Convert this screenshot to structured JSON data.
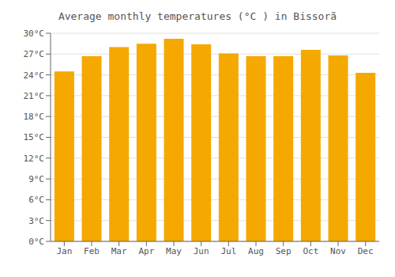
{
  "chart_data": {
    "type": "bar",
    "title": "Average monthly temperatures (°C ) in Bissorã",
    "categories": [
      "Jan",
      "Feb",
      "Mar",
      "Apr",
      "May",
      "Jun",
      "Jul",
      "Aug",
      "Sep",
      "Oct",
      "Nov",
      "Dec"
    ],
    "values": [
      24.5,
      26.7,
      28.0,
      28.5,
      29.2,
      28.4,
      27.1,
      26.7,
      26.7,
      27.6,
      26.8,
      24.3
    ],
    "color": "#F5A800",
    "ylim": [
      0,
      30
    ],
    "yticks": [
      {
        "value": 0,
        "label": "0°C"
      },
      {
        "value": 3,
        "label": "3°C"
      },
      {
        "value": 6,
        "label": "6°C"
      },
      {
        "value": 9,
        "label": "9°C"
      },
      {
        "value": 12,
        "label": "12°C"
      },
      {
        "value": 15,
        "label": "15°C"
      },
      {
        "value": 18,
        "label": "18°C"
      },
      {
        "value": 21,
        "label": "21°C"
      },
      {
        "value": 24,
        "label": "24°C"
      },
      {
        "value": 27,
        "label": "27°C"
      },
      {
        "value": 30,
        "label": "30°C"
      }
    ],
    "grid": true
  }
}
